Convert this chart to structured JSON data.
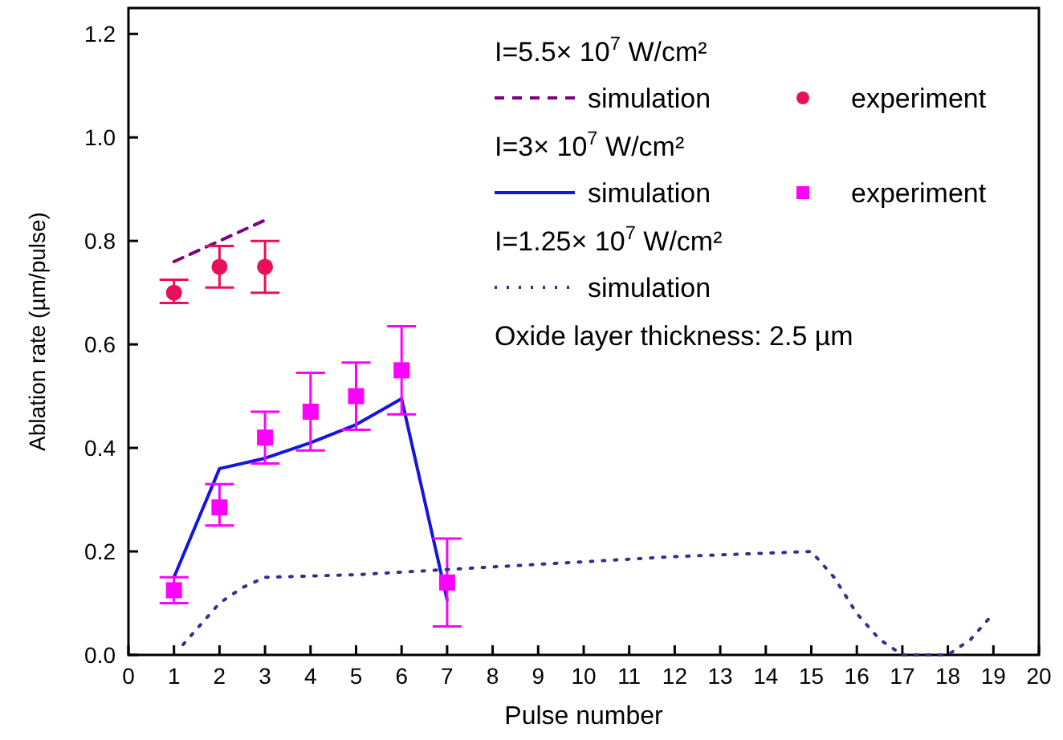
{
  "chart_data": {
    "type": "line",
    "xlabel": "Pulse number",
    "ylabel": "Ablation rate (µm/pulse)",
    "xlim": [
      0,
      20
    ],
    "xticks": [
      0,
      1,
      2,
      3,
      4,
      5,
      6,
      7,
      8,
      9,
      10,
      11,
      12,
      13,
      14,
      15,
      16,
      17,
      18,
      19,
      20
    ],
    "ylim": [
      0,
      1.25
    ],
    "yticks": [
      {
        "value": 0,
        "label": "0.0"
      },
      {
        "value": 0.2,
        "label": "0.2"
      },
      {
        "value": 0.4,
        "label": "0.4"
      },
      {
        "value": 0.6,
        "label": "0.6"
      },
      {
        "value": 0.8,
        "label": "0.8"
      },
      {
        "value": 1,
        "label": "1.0"
      },
      {
        "value": 1.2,
        "label": "1.2"
      }
    ],
    "grid": false,
    "legend": "top right",
    "annotations": [
      "I=5.5× 10$^{7}$ W/cm²",
      "I=3× 10$^{7}$ W/cm²",
      "I=1.25× 10$^{7}$ W/cm²",
      "Oxide layer thickness: 2.5 µm"
    ],
    "series": [
      {
        "name": "simulation",
        "line_style": "dashed",
        "marker": "none",
        "color": "#800080",
        "x": [
          1,
          2,
          3
        ],
        "values": [
          0.76,
          0.8,
          0.84
        ]
      },
      {
        "name": "experiment",
        "type": "scatter",
        "marker": "circle",
        "color": "#e8105a",
        "x": [
          1,
          2,
          3
        ],
        "values": [
          0.7,
          0.75,
          0.75
        ],
        "errors": [
          [
            0.68,
            0.725
          ],
          [
            0.71,
            0.79
          ],
          [
            0.7,
            0.8
          ]
        ]
      },
      {
        "name": "simulation",
        "line_style": "solid",
        "marker": "none",
        "color": "#1515e0",
        "x": [
          1,
          2,
          3,
          4,
          5,
          6,
          7
        ],
        "values": [
          0.15,
          0.36,
          0.38,
          0.41,
          0.445,
          0.495,
          0.106
        ]
      },
      {
        "name": "experiment",
        "type": "scatter",
        "marker": "square",
        "color": "#ff00ff",
        "x": [
          1,
          2,
          3,
          4,
          5,
          6,
          7
        ],
        "values": [
          0.125,
          0.285,
          0.42,
          0.47,
          0.5,
          0.55,
          0.14
        ],
        "errors": [
          [
            0.1,
            0.15
          ],
          [
            0.25,
            0.33
          ],
          [
            0.37,
            0.47
          ],
          [
            0.395,
            0.545
          ],
          [
            0.435,
            0.565
          ],
          [
            0.465,
            0.635
          ],
          [
            0.055,
            0.225
          ]
        ]
      },
      {
        "name": "simulation",
        "line_style": "dotted",
        "marker": "none",
        "color": "#303090",
        "x": [
          1.2,
          1.5,
          2,
          2.5,
          3,
          5,
          7,
          10,
          12,
          15,
          15.5,
          16,
          16.5,
          17,
          18,
          18.5,
          19
        ],
        "values": [
          0.02,
          0.05,
          0.1,
          0.13,
          0.15,
          0.155,
          0.165,
          0.18,
          0.19,
          0.2,
          0.15,
          0.08,
          0.03,
          0,
          0,
          0.03,
          0.08
        ]
      }
    ]
  }
}
